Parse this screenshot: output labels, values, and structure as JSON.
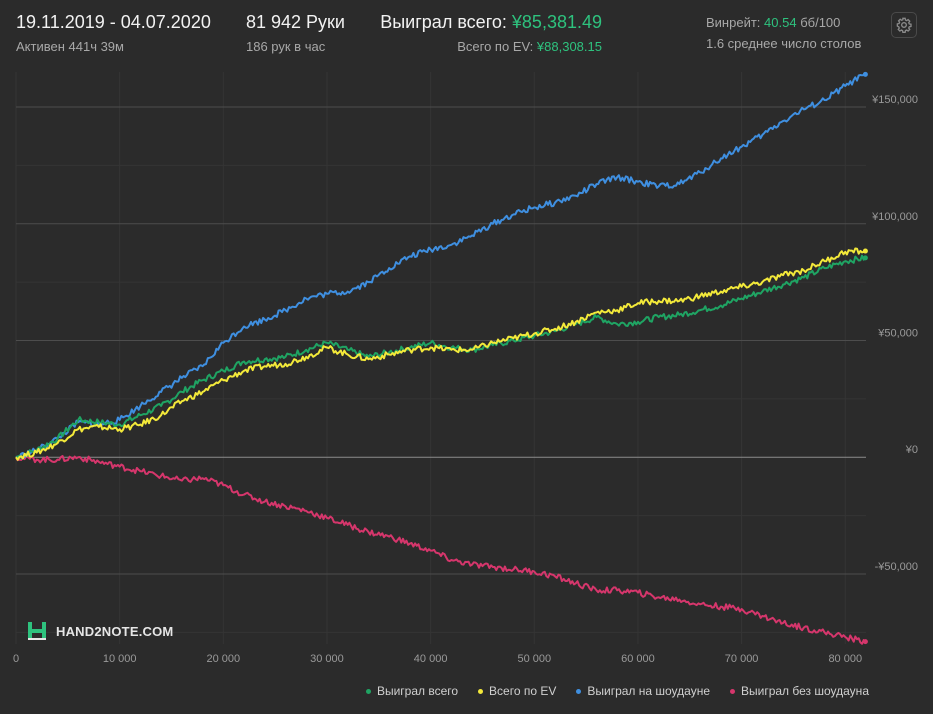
{
  "header": {
    "date_range": "19.11.2019 - 04.07.2020",
    "active_time": "Активен 441ч 39м",
    "hands": "81 942 Руки",
    "hands_per_hour": "186 рук в час",
    "total_won_label": "Выиграл всего:",
    "total_won_value": "¥85,381.49",
    "ev_label": "Всего по EV:",
    "ev_value": "¥88,308.15",
    "winrate_label": "Винрейт:",
    "winrate_value": "40.54",
    "winrate_unit": "бб/100",
    "tables": "1.6 среднее число столов"
  },
  "logo": {
    "text": "HAND2NOTE.COM"
  },
  "icons": {
    "settings": "gear-icon",
    "logo": "hand2note-logo-icon"
  },
  "colors": {
    "background": "#2b2b2b",
    "won_total": "#1fa463",
    "ev": "#f3e93a",
    "showdown": "#3f8fe0",
    "non_showdown": "#d6366c",
    "accent_green": "#2ec27e"
  },
  "chart_data": {
    "type": "line",
    "xlabel": "",
    "ylabel": "",
    "xlim": [
      0,
      82000
    ],
    "ylim": [
      -80000,
      165000
    ],
    "x_ticks": [
      0,
      10000,
      20000,
      30000,
      40000,
      50000,
      60000,
      70000,
      80000
    ],
    "x_tick_labels": [
      "0",
      "10 000",
      "20 000",
      "30 000",
      "40 000",
      "50 000",
      "60 000",
      "70 000",
      "80 000"
    ],
    "y_ticks": [
      -50000,
      0,
      50000,
      100000,
      150000
    ],
    "y_tick_labels": [
      "-¥50,000",
      "¥0",
      "¥50,000",
      "¥100,000",
      "¥150,000"
    ],
    "grid": true,
    "legend_position": "bottom-right",
    "x": [
      0,
      2000,
      4000,
      6000,
      8000,
      10000,
      12000,
      14000,
      16000,
      18000,
      20000,
      22000,
      24000,
      26000,
      28000,
      30000,
      32000,
      34000,
      36000,
      38000,
      40000,
      42000,
      44000,
      46000,
      48000,
      50000,
      52000,
      54000,
      56000,
      58000,
      60000,
      62000,
      64000,
      66000,
      68000,
      70000,
      72000,
      74000,
      76000,
      78000,
      80000,
      81942
    ],
    "series": [
      {
        "name": "Выиграл всего",
        "color": "#1fa463",
        "values": [
          0,
          3000,
          8000,
          16000,
          15000,
          14000,
          18000,
          22000,
          28000,
          33000,
          37000,
          41000,
          42000,
          43000,
          46000,
          49000,
          46000,
          43000,
          45000,
          47000,
          49000,
          47000,
          46000,
          48000,
          50000,
          52000,
          54000,
          57000,
          60000,
          57000,
          58000,
          60000,
          61000,
          63000,
          65000,
          68000,
          71000,
          74000,
          77000,
          81000,
          84000,
          85381
        ]
      },
      {
        "name": "Всего по EV",
        "color": "#f3e93a",
        "values": [
          0,
          2000,
          6000,
          12000,
          13000,
          12000,
          14000,
          18000,
          24000,
          28000,
          33000,
          37000,
          39000,
          40000,
          43000,
          47000,
          44000,
          42000,
          44000,
          46000,
          47000,
          46000,
          46000,
          49000,
          51000,
          53000,
          55000,
          58000,
          62000,
          63000,
          66000,
          67000,
          67000,
          69000,
          71000,
          73000,
          75000,
          78000,
          80000,
          84000,
          88000,
          88308
        ]
      },
      {
        "name": "Выиграл на шоудауне",
        "color": "#3f8fe0",
        "values": [
          0,
          3000,
          8000,
          15000,
          14000,
          16000,
          22000,
          28000,
          34000,
          39000,
          49000,
          56000,
          59000,
          63000,
          68000,
          70000,
          71000,
          75000,
          81000,
          86000,
          89000,
          91000,
          95000,
          100000,
          104000,
          107000,
          109000,
          112000,
          117000,
          120000,
          118000,
          116000,
          117000,
          122000,
          128000,
          133000,
          138000,
          144000,
          149000,
          153000,
          159000,
          164000
        ]
      },
      {
        "name": "Выиграл без шоудауна",
        "color": "#d6366c",
        "values": [
          0,
          -1000,
          -1000,
          0,
          -2000,
          -4000,
          -6000,
          -8000,
          -10000,
          -9000,
          -12000,
          -16000,
          -19000,
          -21000,
          -23000,
          -26000,
          -29000,
          -32000,
          -34000,
          -37000,
          -40000,
          -44000,
          -46000,
          -47000,
          -48000,
          -49000,
          -51000,
          -54000,
          -57000,
          -57000,
          -58000,
          -60000,
          -61000,
          -63000,
          -64000,
          -65000,
          -68000,
          -71000,
          -73000,
          -75000,
          -77000,
          -79000
        ]
      }
    ]
  }
}
